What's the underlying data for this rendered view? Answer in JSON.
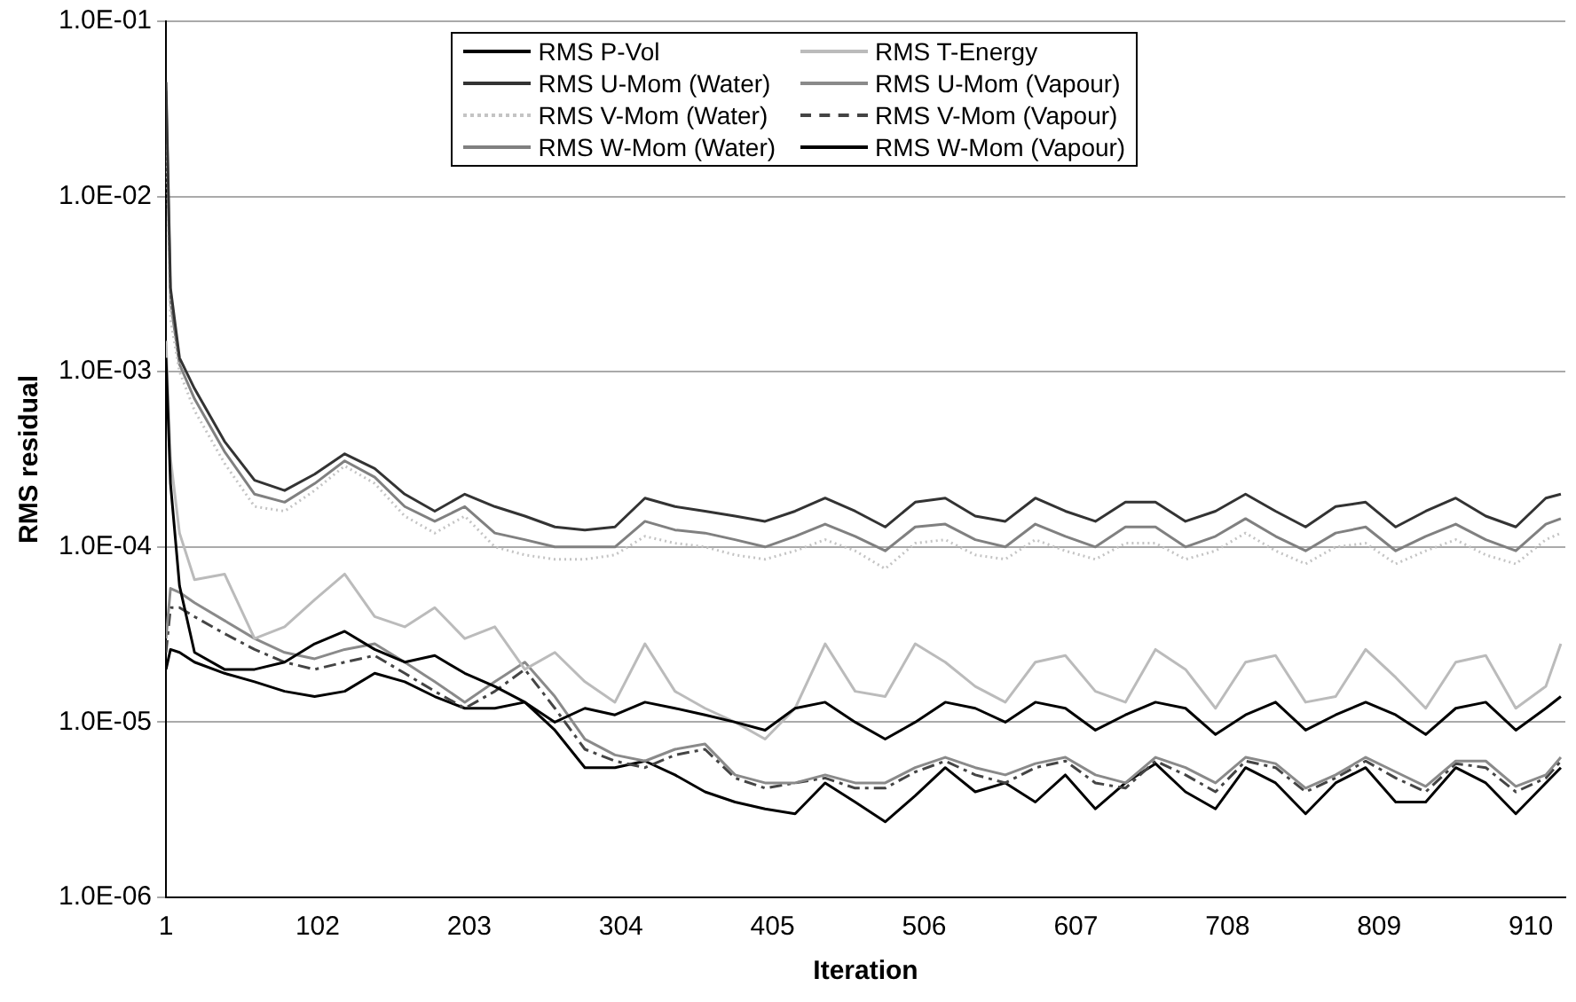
{
  "chart_data": {
    "type": "line",
    "xlabel": "Iteration",
    "ylabel": "RMS residual",
    "log": "y",
    "grid": "y",
    "legend": "top",
    "marker": "none",
    "x": [
      1,
      4,
      10,
      20,
      40,
      60,
      80,
      100,
      120,
      140,
      160,
      180,
      200,
      220,
      240,
      260,
      280,
      300,
      320,
      340,
      360,
      380,
      400,
      420,
      440,
      460,
      480,
      500,
      520,
      540,
      560,
      580,
      600,
      620,
      640,
      660,
      680,
      700,
      720,
      740,
      760,
      780,
      800,
      820,
      840,
      860,
      880,
      900,
      920,
      930
    ],
    "xlim": [
      1,
      933
    ],
    "xticks": [
      1,
      102,
      203,
      304,
      405,
      506,
      607,
      708,
      809,
      910
    ],
    "ylim": [
      1e-06,
      0.1
    ],
    "yticks": [
      {
        "value": 1e-06,
        "label": "1.0E-06"
      },
      {
        "value": 1e-05,
        "label": "1.0E-05"
      },
      {
        "value": 0.0001,
        "label": "1.0E-04"
      },
      {
        "value": 0.001,
        "label": "1.0E-03"
      },
      {
        "value": 0.01,
        "label": "1.0E-02"
      },
      {
        "value": 0.1,
        "label": "1.0E-01"
      }
    ],
    "series": [
      {
        "name": "RMS P-Vol",
        "color": "#000000",
        "line_style": "solid",
        "values": [
          0.0012,
          0.00023,
          6e-05,
          2.5e-05,
          2e-05,
          2e-05,
          2.2e-05,
          2.8e-05,
          3.3e-05,
          2.6e-05,
          2.2e-05,
          2.4e-05,
          1.9e-05,
          1.6e-05,
          1.3e-05,
          1e-05,
          1.2e-05,
          1.1e-05,
          1.3e-05,
          1.2e-05,
          1.1e-05,
          1e-05,
          9e-06,
          1.2e-05,
          1.3e-05,
          1e-05,
          8e-06,
          1e-05,
          1.3e-05,
          1.2e-05,
          1e-05,
          1.3e-05,
          1.2e-05,
          9e-06,
          1.1e-05,
          1.3e-05,
          1.2e-05,
          8.5e-06,
          1.1e-05,
          1.3e-05,
          9e-06,
          1.1e-05,
          1.3e-05,
          1.1e-05,
          8.5e-06,
          1.2e-05,
          1.3e-05,
          9e-06,
          1.2e-05,
          1.4e-05
        ]
      },
      {
        "name": "RMS T-Energy",
        "color": "#bbbbbb",
        "line_style": "solid",
        "values": [
          0.0015,
          0.00032,
          0.00012,
          6.5e-05,
          7e-05,
          3e-05,
          3.5e-05,
          5e-05,
          7e-05,
          4e-05,
          3.5e-05,
          4.5e-05,
          3e-05,
          3.5e-05,
          2e-05,
          2.5e-05,
          1.7e-05,
          1.3e-05,
          2.8e-05,
          1.5e-05,
          1.2e-05,
          1e-05,
          8e-06,
          1.2e-05,
          2.8e-05,
          1.5e-05,
          1.4e-05,
          2.8e-05,
          2.2e-05,
          1.6e-05,
          1.3e-05,
          2.2e-05,
          2.4e-05,
          1.5e-05,
          1.3e-05,
          2.6e-05,
          2e-05,
          1.2e-05,
          2.2e-05,
          2.4e-05,
          1.3e-05,
          1.4e-05,
          2.6e-05,
          1.8e-05,
          1.2e-05,
          2.2e-05,
          2.4e-05,
          1.2e-05,
          1.6e-05,
          2.8e-05
        ]
      },
      {
        "name": "RMS U-Mom (Water)",
        "color": "#333333",
        "line_style": "solid",
        "values": [
          0.045,
          0.003,
          0.0012,
          0.0008,
          0.0004,
          0.00024,
          0.00021,
          0.00026,
          0.00034,
          0.00028,
          0.0002,
          0.00016,
          0.0002,
          0.00017,
          0.00015,
          0.00013,
          0.000125,
          0.00013,
          0.00019,
          0.00017,
          0.00016,
          0.00015,
          0.00014,
          0.00016,
          0.00019,
          0.00016,
          0.00013,
          0.00018,
          0.00019,
          0.00015,
          0.00014,
          0.00019,
          0.00016,
          0.00014,
          0.00018,
          0.00018,
          0.00014,
          0.00016,
          0.0002,
          0.00016,
          0.00013,
          0.00017,
          0.00018,
          0.00013,
          0.00016,
          0.00019,
          0.00015,
          0.00013,
          0.00019,
          0.0002
        ]
      },
      {
        "name": "RMS U-Mom (Vapour)",
        "color": "#8a8a8a",
        "line_style": "solid",
        "values": [
          3e-05,
          5.8e-05,
          5.5e-05,
          4.8e-05,
          3.8e-05,
          3e-05,
          2.5e-05,
          2.3e-05,
          2.6e-05,
          2.8e-05,
          2.2e-05,
          1.7e-05,
          1.3e-05,
          1.7e-05,
          2.2e-05,
          1.4e-05,
          8e-06,
          6.5e-06,
          6e-06,
          7e-06,
          7.5e-06,
          5e-06,
          4.5e-06,
          4.5e-06,
          5e-06,
          4.5e-06,
          4.5e-06,
          5.5e-06,
          6.3e-06,
          5.5e-06,
          5e-06,
          5.8e-06,
          6.3e-06,
          5e-06,
          4.5e-06,
          6.3e-06,
          5.5e-06,
          4.5e-06,
          6.3e-06,
          5.8e-06,
          4.2e-06,
          5e-06,
          6.3e-06,
          5.2e-06,
          4.3e-06,
          6e-06,
          6e-06,
          4.3e-06,
          5e-06,
          6.3e-06
        ]
      },
      {
        "name": "RMS V-Mom (Water)",
        "color": "#c4c4c4",
        "line_style": "dotted",
        "values": [
          0.03,
          0.002,
          0.001,
          0.0006,
          0.0003,
          0.00017,
          0.00016,
          0.00021,
          0.00029,
          0.00023,
          0.00015,
          0.00012,
          0.00015,
          0.0001,
          9e-05,
          8.5e-05,
          8.5e-05,
          9e-05,
          0.000115,
          0.000105,
          0.0001,
          9e-05,
          8.5e-05,
          9.5e-05,
          0.00011,
          9.5e-05,
          7.5e-05,
          0.000105,
          0.00011,
          9e-05,
          8.5e-05,
          0.00011,
          9.5e-05,
          8.5e-05,
          0.000105,
          0.000105,
          8.5e-05,
          9.5e-05,
          0.00012,
          9.5e-05,
          8e-05,
          0.0001,
          0.000105,
          8e-05,
          9.5e-05,
          0.00011,
          9e-05,
          8e-05,
          0.00011,
          0.00012
        ]
      },
      {
        "name": "RMS V-Mom (Vapour)",
        "color": "#444444",
        "line_style": "dashed",
        "values": [
          2.5e-05,
          4.5e-05,
          4.5e-05,
          4e-05,
          3.2e-05,
          2.6e-05,
          2.2e-05,
          2e-05,
          2.2e-05,
          2.4e-05,
          1.9e-05,
          1.5e-05,
          1.2e-05,
          1.5e-05,
          2e-05,
          1.2e-05,
          7e-06,
          6e-06,
          5.5e-06,
          6.5e-06,
          7e-06,
          4.8e-06,
          4.2e-06,
          4.5e-06,
          4.8e-06,
          4.2e-06,
          4.2e-06,
          5.2e-06,
          6e-06,
          5e-06,
          4.5e-06,
          5.5e-06,
          6e-06,
          4.5e-06,
          4.2e-06,
          6e-06,
          5e-06,
          4e-06,
          6e-06,
          5.5e-06,
          4e-06,
          4.8e-06,
          6e-06,
          4.8e-06,
          4e-06,
          5.8e-06,
          5.5e-06,
          4e-06,
          4.8e-06,
          6e-06
        ]
      },
      {
        "name": "RMS W-Mom (Water)",
        "color": "#808080",
        "line_style": "solid",
        "values": [
          0.04,
          0.0025,
          0.0011,
          0.0007,
          0.00035,
          0.0002,
          0.00018,
          0.00023,
          0.00031,
          0.00025,
          0.00017,
          0.00014,
          0.00017,
          0.00012,
          0.00011,
          0.0001,
          0.0001,
          0.0001,
          0.00014,
          0.000125,
          0.00012,
          0.00011,
          0.0001,
          0.000115,
          0.000135,
          0.000115,
          9.5e-05,
          0.00013,
          0.000135,
          0.00011,
          0.0001,
          0.000135,
          0.000115,
          0.0001,
          0.00013,
          0.00013,
          0.0001,
          0.000115,
          0.000145,
          0.000115,
          9.5e-05,
          0.00012,
          0.00013,
          9.5e-05,
          0.000115,
          0.000135,
          0.00011,
          9.5e-05,
          0.000135,
          0.000145
        ]
      },
      {
        "name": "RMS W-Mom (Vapour)",
        "color": "#000000",
        "line_style": "solid",
        "values": [
          2e-05,
          2.6e-05,
          2.5e-05,
          2.2e-05,
          1.9e-05,
          1.7e-05,
          1.5e-05,
          1.4e-05,
          1.5e-05,
          1.9e-05,
          1.7e-05,
          1.4e-05,
          1.2e-05,
          1.2e-05,
          1.3e-05,
          9e-06,
          5.5e-06,
          5.5e-06,
          6e-06,
          5e-06,
          4e-06,
          3.5e-06,
          3.2e-06,
          3e-06,
          4.5e-06,
          3.5e-06,
          2.7e-06,
          3.8e-06,
          5.5e-06,
          4e-06,
          4.5e-06,
          3.5e-06,
          5e-06,
          3.2e-06,
          4.5e-06,
          5.8e-06,
          4e-06,
          3.2e-06,
          5.5e-06,
          4.5e-06,
          3e-06,
          4.5e-06,
          5.5e-06,
          3.5e-06,
          3.5e-06,
          5.5e-06,
          4.5e-06,
          3e-06,
          4.5e-06,
          5.5e-06
        ]
      }
    ]
  }
}
